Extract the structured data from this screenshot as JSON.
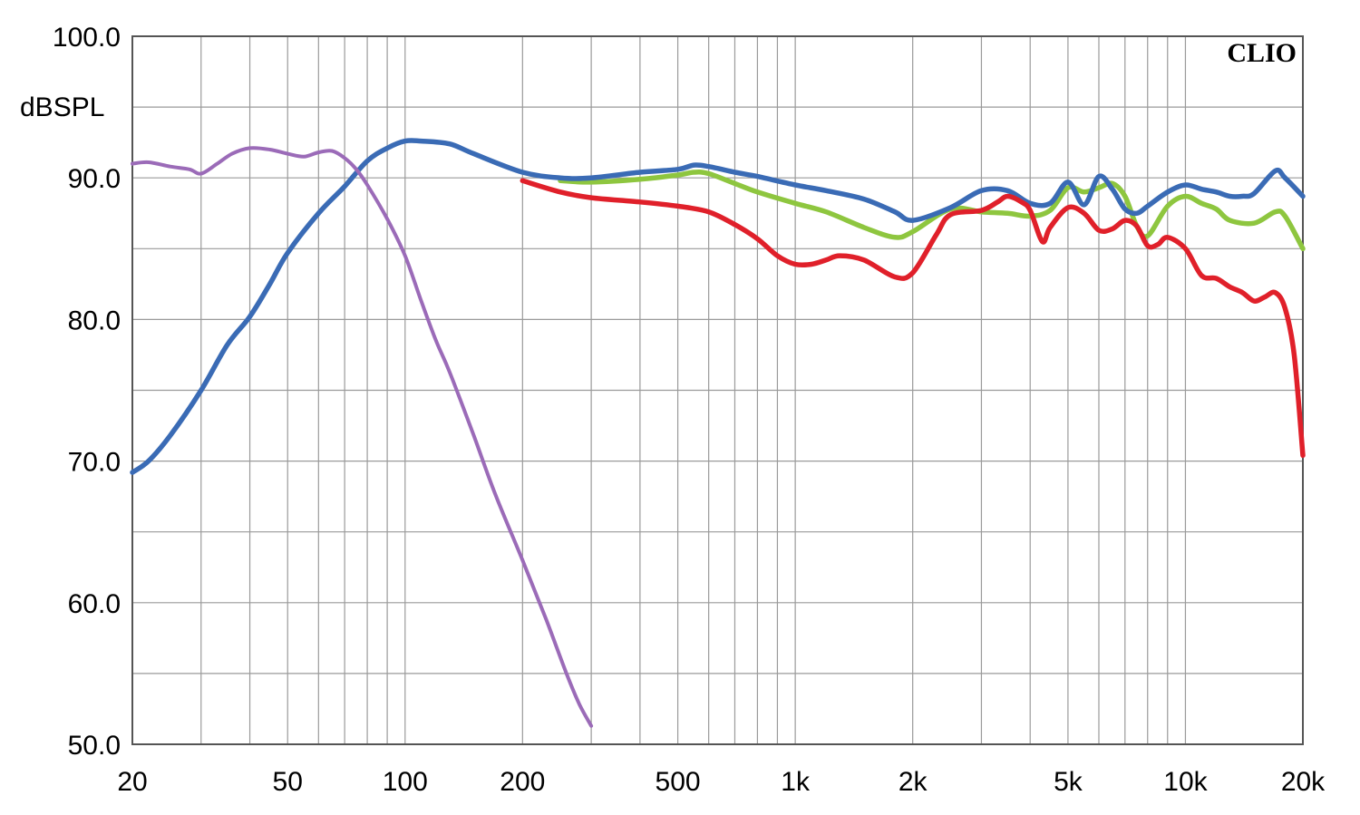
{
  "chart_data": {
    "type": "line",
    "title": "",
    "brand": "CLIO",
    "ylabel": "dBSPL",
    "xlabel": "",
    "x_scale": "log",
    "xlim": [
      20,
      20000
    ],
    "ylim": [
      50,
      100
    ],
    "grid": true,
    "y_ticks": [
      {
        "value": 100,
        "label": "100.0"
      },
      {
        "value": 90,
        "label": "90.0"
      },
      {
        "value": 80,
        "label": "80.0"
      },
      {
        "value": 70,
        "label": "70.0"
      },
      {
        "value": 60,
        "label": "60.0"
      },
      {
        "value": 50,
        "label": "50.0"
      }
    ],
    "y_grid": [
      50,
      55,
      60,
      65,
      70,
      75,
      80,
      85,
      90,
      95,
      100
    ],
    "x_ticks": [
      {
        "value": 20,
        "label": "20"
      },
      {
        "value": 50,
        "label": "50"
      },
      {
        "value": 100,
        "label": "100"
      },
      {
        "value": 200,
        "label": "200"
      },
      {
        "value": 500,
        "label": "500"
      },
      {
        "value": 1000,
        "label": "1k"
      },
      {
        "value": 2000,
        "label": "2k"
      },
      {
        "value": 5000,
        "label": "5k"
      },
      {
        "value": 10000,
        "label": "10k"
      },
      {
        "value": 20000,
        "label": "20k"
      }
    ],
    "x_grid": [
      20,
      30,
      40,
      50,
      60,
      70,
      80,
      90,
      100,
      200,
      300,
      400,
      500,
      600,
      700,
      800,
      900,
      1000,
      2000,
      3000,
      4000,
      5000,
      6000,
      7000,
      8000,
      9000,
      10000,
      20000
    ],
    "series": [
      {
        "color": "#8ec63f",
        "x": [
          250,
          300,
          400,
          500,
          550,
          600,
          700,
          800,
          1000,
          1200,
          1500,
          1800,
          2000,
          2500,
          3000,
          3500,
          4000,
          4500,
          5000,
          5500,
          6000,
          6500,
          7000,
          7500,
          8000,
          9000,
          10000,
          11000,
          12000,
          13000,
          15000,
          17000,
          18000,
          20000
        ],
        "y": [
          89.8,
          89.7,
          89.9,
          90.2,
          90.4,
          90.3,
          89.6,
          89.0,
          88.2,
          87.6,
          86.5,
          85.8,
          86.2,
          87.8,
          87.6,
          87.5,
          87.3,
          87.7,
          89.3,
          89.0,
          89.3,
          89.6,
          88.7,
          86.6,
          85.9,
          88.0,
          88.7,
          88.2,
          87.8,
          87.0,
          86.8,
          87.6,
          87.3,
          85.0
        ]
      },
      {
        "color": "#3a6bb5",
        "x": [
          20,
          22,
          25,
          30,
          35,
          40,
          45,
          50,
          60,
          70,
          80,
          90,
          100,
          110,
          130,
          150,
          200,
          250,
          300,
          400,
          500,
          550,
          600,
          700,
          800,
          1000,
          1200,
          1500,
          1800,
          2000,
          2500,
          3000,
          3500,
          4000,
          4500,
          5000,
          5500,
          6000,
          6500,
          7000,
          7500,
          8000,
          9000,
          10000,
          11000,
          12000,
          13000,
          14000,
          15000,
          17000,
          18000,
          20000
        ],
        "y": [
          69.2,
          70.0,
          71.8,
          75.0,
          78.2,
          80.2,
          82.5,
          84.7,
          87.5,
          89.4,
          91.2,
          92.1,
          92.6,
          92.6,
          92.4,
          91.7,
          90.4,
          90.0,
          90.0,
          90.4,
          90.6,
          90.9,
          90.8,
          90.4,
          90.1,
          89.5,
          89.1,
          88.5,
          87.6,
          87.0,
          87.9,
          89.1,
          89.1,
          88.2,
          88.2,
          89.7,
          88.1,
          90.1,
          89.2,
          87.8,
          87.5,
          88.0,
          89.0,
          89.5,
          89.2,
          89.0,
          88.7,
          88.7,
          88.9,
          90.5,
          90.0,
          88.7
        ]
      },
      {
        "color": "#9b6bb8",
        "x": [
          20,
          22,
          25,
          28,
          30,
          33,
          36,
          40,
          45,
          50,
          55,
          60,
          65,
          70,
          75,
          80,
          90,
          100,
          110,
          120,
          130,
          150,
          170,
          200,
          230,
          260,
          280,
          300
        ],
        "y": [
          91.0,
          91.1,
          90.8,
          90.6,
          90.3,
          91.0,
          91.7,
          92.1,
          92.0,
          91.7,
          91.5,
          91.8,
          91.9,
          91.4,
          90.6,
          89.5,
          87.1,
          84.5,
          81.3,
          78.5,
          76.3,
          71.8,
          67.7,
          63.0,
          58.8,
          54.9,
          52.8,
          51.3
        ]
      },
      {
        "color": "#e0202a",
        "x": [
          200,
          250,
          300,
          400,
          500,
          600,
          700,
          800,
          900,
          1000,
          1100,
          1200,
          1300,
          1500,
          1800,
          2000,
          2300,
          2500,
          3000,
          3300,
          3500,
          3800,
          4000,
          4300,
          4500,
          5000,
          5500,
          6000,
          6500,
          7000,
          7500,
          8000,
          8500,
          9000,
          10000,
          11000,
          12000,
          13000,
          14000,
          15000,
          16000,
          17000,
          18000,
          19000,
          20000
        ],
        "y": [
          89.8,
          89.0,
          88.6,
          88.3,
          88.0,
          87.6,
          86.7,
          85.7,
          84.5,
          83.9,
          83.9,
          84.2,
          84.5,
          84.2,
          83.0,
          83.3,
          86.0,
          87.4,
          87.7,
          88.3,
          88.7,
          88.3,
          87.7,
          85.5,
          86.5,
          87.9,
          87.5,
          86.3,
          86.4,
          87.0,
          86.6,
          85.2,
          85.3,
          85.8,
          85.0,
          83.1,
          82.9,
          82.3,
          81.9,
          81.3,
          81.6,
          81.9,
          80.8,
          77.5,
          70.4
        ]
      }
    ]
  }
}
